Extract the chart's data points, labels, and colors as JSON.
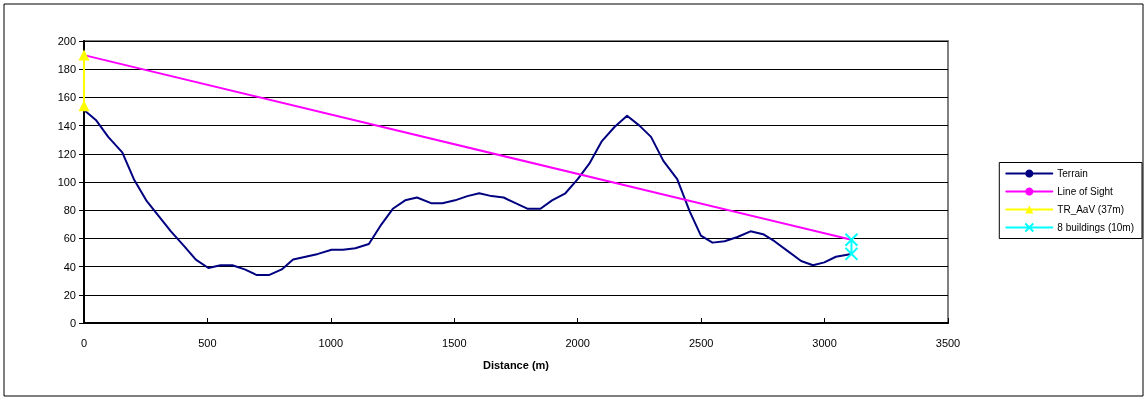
{
  "chart_data": {
    "type": "line",
    "xlabel": "Distance (m)",
    "xlim": [
      0,
      3500
    ],
    "xticks": [
      0,
      500,
      1000,
      1500,
      2000,
      2500,
      3000,
      3500
    ],
    "ylim": [
      0,
      200
    ],
    "yticks": [
      0,
      20,
      40,
      60,
      80,
      100,
      120,
      140,
      160,
      180,
      200
    ],
    "grid": "y",
    "legend": "right",
    "line_style": "solid",
    "series": [
      {
        "name": "Terrain",
        "color": "#000080",
        "marker": "none",
        "x": [
          0,
          48,
          98,
          155,
          202,
          252,
          302,
          352,
          403,
          453,
          504,
          553,
          601,
          651,
          700,
          749,
          801,
          847,
          898,
          948,
          1003,
          1049,
          1099,
          1154,
          1205,
          1251,
          1301,
          1349,
          1406,
          1452,
          1503,
          1553,
          1601,
          1651,
          1700,
          1748,
          1798,
          1849,
          1896,
          1950,
          2000,
          2047,
          2098,
          2149,
          2200,
          2250,
          2297,
          2347,
          2403,
          2454,
          2499,
          2546,
          2595,
          2647,
          2700,
          2751,
          2797,
          2851,
          2905,
          2953,
          2999,
          3046,
          3109
        ],
        "values": [
          151,
          144,
          132,
          121,
          102,
          87,
          76,
          65,
          55,
          45,
          39,
          41,
          41,
          38,
          34,
          34,
          38,
          45,
          47,
          49,
          52,
          52,
          53,
          56,
          70,
          81,
          87,
          89,
          85,
          85,
          87,
          90,
          92,
          90,
          89,
          85,
          81,
          81,
          87,
          92,
          102,
          113,
          129,
          139,
          147,
          140,
          132,
          115,
          102,
          79,
          62,
          57,
          58,
          61,
          65,
          63,
          58,
          51,
          44,
          41,
          43,
          47,
          49
        ]
      },
      {
        "name": "Line of Sight",
        "color": "#ff00ff",
        "marker": "none",
        "x": [
          0,
          3109
        ],
        "values": [
          190,
          59
        ]
      },
      {
        "name": "TR_AaV (37m)",
        "color": "#ffff00",
        "marker": "triangle",
        "x": [
          0,
          0
        ],
        "values": [
          154,
          190
        ]
      },
      {
        "name": "8 buildings (10m)",
        "color": "#00ffff",
        "marker": "cross",
        "x": [
          3109,
          3109
        ],
        "values": [
          49,
          59
        ]
      }
    ]
  }
}
